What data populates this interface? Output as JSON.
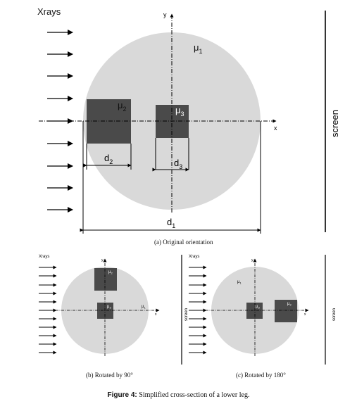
{
  "panel_a": {
    "xrays_label": "Xrays",
    "axis_y": "y",
    "axis_x": "x",
    "mu1": "μ",
    "mu1_sub": "1",
    "mu2": "μ",
    "mu2_sub": "2",
    "mu3": "μ",
    "mu3_sub": "3",
    "d1": "d",
    "d1_sub": "1",
    "d2": "d",
    "d2_sub": "2",
    "d3": "d",
    "d3_sub": "3",
    "screen_label": "screen",
    "caption": "(a) Original orientation"
  },
  "panel_b": {
    "xrays_label": "Xrays",
    "axis_y": "y",
    "axis_x": "x",
    "mu1": "μ",
    "mu1_sub": "1",
    "mu2": "μ",
    "mu2_sub": "2",
    "mu3": "μ",
    "mu3_sub": "3",
    "screen_label": "screen",
    "caption": "(b) Rotated by 90°"
  },
  "panel_c": {
    "xrays_label": "Xrays",
    "axis_y": "y",
    "axis_x": "x",
    "mu1": "μ",
    "mu1_sub": "1",
    "mu2": "μ",
    "mu2_sub": "2",
    "mu3": "μ",
    "mu3_sub": "3",
    "screen_label": "screen",
    "caption": "(c) Rotated by 180°"
  },
  "figure_caption": {
    "label": "Figure 4:",
    "text": " Simplified cross-section of a lower leg."
  },
  "colors": {
    "leg": "#d9d9d9",
    "bone": "#4a4a4a",
    "line": "#000000"
  }
}
